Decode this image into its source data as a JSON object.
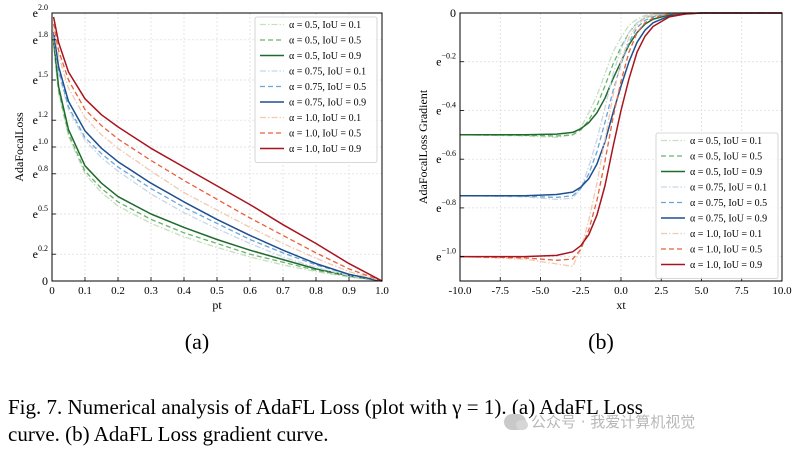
{
  "chart_data": [
    {
      "type": "line",
      "panel_label": "(a)",
      "xlabel": "pt",
      "ylabel": "AdaFocalLoss",
      "xlim": [
        0,
        1
      ],
      "ylim": [
        0,
        2.0
      ],
      "x_ticks": [
        0,
        0.1,
        0.2,
        0.3,
        0.4,
        0.5,
        0.6,
        0.7,
        0.8,
        0.9,
        1.0
      ],
      "x_tick_labels": [
        "0",
        "0.1",
        "0.2",
        "0.3",
        "0.4",
        "0.5",
        "0.6",
        "0.7",
        "0.8",
        "0.9",
        "1.0"
      ],
      "y_ticks": [
        0,
        0.2,
        0.5,
        0.8,
        1.0,
        1.2,
        1.5,
        1.8,
        2.0
      ],
      "y_tick_labels": [
        {
          "base": "0",
          "exp": ""
        },
        {
          "base": "e",
          "exp": "0.2"
        },
        {
          "base": "e",
          "exp": "0.5"
        },
        {
          "base": "e",
          "exp": "0.8"
        },
        {
          "base": "e",
          "exp": "1.0"
        },
        {
          "base": "e",
          "exp": "1.2"
        },
        {
          "base": "e",
          "exp": "1.5"
        },
        {
          "base": "e",
          "exp": "1.8"
        },
        {
          "base": "e",
          "exp": "2.0"
        }
      ],
      "grid": true,
      "legend_position": "top-right",
      "series": [
        {
          "name": "α = 0.5, IoU = 0.1",
          "color": "#c7dec0",
          "dash": "dashdot",
          "x": [
            0.005,
            0.02,
            0.05,
            0.1,
            0.15,
            0.2,
            0.3,
            0.4,
            0.5,
            0.6,
            0.7,
            0.8,
            0.9,
            1.0
          ],
          "y": [
            1.75,
            1.4,
            1.08,
            0.8,
            0.66,
            0.56,
            0.43,
            0.33,
            0.25,
            0.18,
            0.12,
            0.07,
            0.03,
            0.0
          ]
        },
        {
          "name": "α = 0.5, IoU = 0.5",
          "color": "#6ab46e",
          "dash": "dashed",
          "x": [
            0.005,
            0.02,
            0.05,
            0.1,
            0.15,
            0.2,
            0.3,
            0.4,
            0.5,
            0.6,
            0.7,
            0.8,
            0.9,
            1.0
          ],
          "y": [
            1.78,
            1.42,
            1.1,
            0.82,
            0.69,
            0.59,
            0.46,
            0.36,
            0.28,
            0.2,
            0.14,
            0.08,
            0.035,
            0.0
          ]
        },
        {
          "name": "α = 0.5, IoU = 0.9",
          "color": "#1f6b2e",
          "dash": "solid",
          "x": [
            0.005,
            0.02,
            0.05,
            0.1,
            0.15,
            0.2,
            0.3,
            0.4,
            0.5,
            0.6,
            0.7,
            0.8,
            0.9,
            1.0
          ],
          "y": [
            1.8,
            1.45,
            1.13,
            0.86,
            0.73,
            0.63,
            0.5,
            0.4,
            0.31,
            0.23,
            0.16,
            0.09,
            0.04,
            0.0
          ]
        },
        {
          "name": "α = 0.75, IoU = 0.1",
          "color": "#c8d6e6",
          "dash": "dashdot",
          "x": [
            0.005,
            0.02,
            0.05,
            0.1,
            0.15,
            0.2,
            0.3,
            0.4,
            0.5,
            0.6,
            0.7,
            0.8,
            0.9,
            1.0
          ],
          "y": [
            1.82,
            1.55,
            1.28,
            1.05,
            0.92,
            0.82,
            0.65,
            0.51,
            0.39,
            0.28,
            0.18,
            0.1,
            0.04,
            0.0
          ]
        },
        {
          "name": "α = 0.75, IoU = 0.5",
          "color": "#6aa6d6",
          "dash": "dashed",
          "x": [
            0.005,
            0.02,
            0.05,
            0.1,
            0.15,
            0.2,
            0.3,
            0.4,
            0.5,
            0.6,
            0.7,
            0.8,
            0.9,
            1.0
          ],
          "y": [
            1.84,
            1.57,
            1.3,
            1.07,
            0.95,
            0.85,
            0.69,
            0.55,
            0.43,
            0.31,
            0.21,
            0.12,
            0.05,
            0.0
          ]
        },
        {
          "name": "α = 0.75, IoU = 0.9",
          "color": "#1f4f8f",
          "dash": "solid",
          "x": [
            0.005,
            0.02,
            0.05,
            0.1,
            0.15,
            0.2,
            0.3,
            0.4,
            0.5,
            0.6,
            0.7,
            0.8,
            0.9,
            1.0
          ],
          "y": [
            1.86,
            1.6,
            1.34,
            1.12,
            0.99,
            0.89,
            0.73,
            0.59,
            0.46,
            0.34,
            0.23,
            0.13,
            0.05,
            0.0
          ]
        },
        {
          "name": "α = 1.0, IoU = 0.1",
          "color": "#f0c9b0",
          "dash": "dashdot",
          "x": [
            0.005,
            0.02,
            0.05,
            0.1,
            0.15,
            0.2,
            0.3,
            0.4,
            0.5,
            0.6,
            0.7,
            0.8,
            0.9,
            1.0
          ],
          "y": [
            1.88,
            1.68,
            1.44,
            1.22,
            1.09,
            0.99,
            0.82,
            0.66,
            0.53,
            0.4,
            0.28,
            0.17,
            0.07,
            0.0
          ]
        },
        {
          "name": "α = 1.0, IoU = 0.5",
          "color": "#e8603c",
          "dash": "dashed",
          "x": [
            0.005,
            0.02,
            0.05,
            0.1,
            0.15,
            0.2,
            0.3,
            0.4,
            0.5,
            0.6,
            0.7,
            0.8,
            0.9,
            1.0
          ],
          "y": [
            1.92,
            1.72,
            1.5,
            1.28,
            1.16,
            1.06,
            0.9,
            0.75,
            0.61,
            0.47,
            0.34,
            0.21,
            0.09,
            0.0
          ]
        },
        {
          "name": "α = 1.0, IoU = 0.9",
          "color": "#a8141e",
          "dash": "solid",
          "x": [
            0.005,
            0.02,
            0.05,
            0.1,
            0.15,
            0.2,
            0.3,
            0.4,
            0.5,
            0.6,
            0.7,
            0.8,
            0.9,
            1.0
          ],
          "y": [
            1.97,
            1.78,
            1.56,
            1.36,
            1.24,
            1.15,
            0.99,
            0.85,
            0.71,
            0.57,
            0.42,
            0.28,
            0.13,
            0.0
          ]
        }
      ]
    },
    {
      "type": "line",
      "panel_label": "(b)",
      "xlabel": "xt",
      "ylabel": "AdaFocalLoss Gradient",
      "xlim": [
        -10,
        10
      ],
      "ylim": [
        -1.1,
        0
      ],
      "x_ticks": [
        -10,
        -7.5,
        -5,
        -2.5,
        0,
        2.5,
        5,
        7.5,
        10
      ],
      "x_tick_labels": [
        "-10.0",
        "-7.5",
        "-5.0",
        "-2.5",
        "0.0",
        "2.5",
        "5.0",
        "7.5",
        "10.0"
      ],
      "y_ticks": [
        0,
        -0.2,
        -0.4,
        -0.6,
        -0.8,
        -1.0
      ],
      "y_tick_labels": [
        {
          "base": "0",
          "exp": ""
        },
        {
          "base": "e",
          "exp": "−0.2"
        },
        {
          "base": "e",
          "exp": "−0.4"
        },
        {
          "base": "e",
          "exp": "−0.6"
        },
        {
          "base": "e",
          "exp": "−0.8"
        },
        {
          "base": "e",
          "exp": "−1.0"
        }
      ],
      "grid": true,
      "legend_position": "bottom-right",
      "series": [
        {
          "name": "α = 0.5, IoU = 0.1",
          "color": "#c7dec0",
          "dash": "dashdot",
          "x": [
            -10,
            -6,
            -4,
            -3,
            -2.5,
            -2,
            -1.5,
            -1,
            -0.5,
            0,
            0.5,
            1,
            1.5,
            2,
            3,
            4,
            5,
            10
          ],
          "y": [
            -0.5,
            -0.505,
            -0.51,
            -0.5,
            -0.47,
            -0.41,
            -0.34,
            -0.25,
            -0.16,
            -0.1,
            -0.05,
            -0.025,
            -0.01,
            -0.004,
            0,
            0,
            0,
            0
          ]
        },
        {
          "name": "α = 0.5, IoU = 0.5",
          "color": "#6ab46e",
          "dash": "dashed",
          "x": [
            -10,
            -6,
            -4,
            -3,
            -2.5,
            -2,
            -1.5,
            -1,
            -0.5,
            0,
            0.5,
            1,
            1.5,
            2,
            3,
            4,
            5,
            10
          ],
          "y": [
            -0.5,
            -0.502,
            -0.505,
            -0.5,
            -0.48,
            -0.44,
            -0.38,
            -0.3,
            -0.21,
            -0.14,
            -0.08,
            -0.04,
            -0.02,
            -0.01,
            -0.002,
            0,
            0,
            0
          ]
        },
        {
          "name": "α = 0.5, IoU = 0.9",
          "color": "#1f6b2e",
          "dash": "solid",
          "x": [
            -10,
            -6,
            -4,
            -3,
            -2.5,
            -2,
            -1.5,
            -1,
            -0.5,
            0,
            0.5,
            1,
            1.5,
            2,
            3,
            4,
            5,
            10
          ],
          "y": [
            -0.5,
            -0.5,
            -0.497,
            -0.49,
            -0.475,
            -0.45,
            -0.41,
            -0.35,
            -0.27,
            -0.2,
            -0.13,
            -0.08,
            -0.045,
            -0.025,
            -0.008,
            -0.002,
            0,
            0
          ]
        },
        {
          "name": "α = 0.75, IoU = 0.1",
          "color": "#c8d6e6",
          "dash": "dashdot",
          "x": [
            -10,
            -6,
            -4,
            -3,
            -2.5,
            -2,
            -1.5,
            -1,
            -0.5,
            0,
            0.5,
            1,
            1.5,
            2,
            3,
            4,
            5,
            10
          ],
          "y": [
            -0.75,
            -0.755,
            -0.765,
            -0.76,
            -0.72,
            -0.63,
            -0.52,
            -0.39,
            -0.25,
            -0.15,
            -0.08,
            -0.04,
            -0.015,
            -0.006,
            0,
            0,
            0,
            0
          ]
        },
        {
          "name": "α = 0.75, IoU = 0.5",
          "color": "#6aa6d6",
          "dash": "dashed",
          "x": [
            -10,
            -6,
            -4,
            -3,
            -2.5,
            -2,
            -1.5,
            -1,
            -0.5,
            0,
            0.5,
            1,
            1.5,
            2,
            3,
            4,
            5,
            10
          ],
          "y": [
            -0.75,
            -0.752,
            -0.757,
            -0.75,
            -0.72,
            -0.66,
            -0.57,
            -0.45,
            -0.32,
            -0.21,
            -0.12,
            -0.06,
            -0.03,
            -0.015,
            -0.003,
            0,
            0,
            0
          ]
        },
        {
          "name": "α = 0.75, IoU = 0.9",
          "color": "#1f4f8f",
          "dash": "solid",
          "x": [
            -10,
            -6,
            -4,
            -3,
            -2.5,
            -2,
            -1.5,
            -1,
            -0.5,
            0,
            0.5,
            1,
            1.5,
            2,
            3,
            4,
            5,
            10
          ],
          "y": [
            -0.75,
            -0.75,
            -0.745,
            -0.735,
            -0.715,
            -0.68,
            -0.62,
            -0.53,
            -0.41,
            -0.3,
            -0.2,
            -0.12,
            -0.07,
            -0.04,
            -0.012,
            -0.003,
            0,
            0
          ]
        },
        {
          "name": "α = 1.0, IoU = 0.1",
          "color": "#f0c9b0",
          "dash": "dashdot",
          "x": [
            -10,
            -6,
            -4,
            -3,
            -2.5,
            -2,
            -1.5,
            -1,
            -0.5,
            0,
            0.5,
            1,
            1.5,
            2,
            3,
            4,
            5,
            10
          ],
          "y": [
            -1.0,
            -1.01,
            -1.03,
            -1.04,
            -0.97,
            -0.85,
            -0.7,
            -0.52,
            -0.34,
            -0.2,
            -0.1,
            -0.05,
            -0.02,
            -0.008,
            0,
            0,
            0,
            0
          ]
        },
        {
          "name": "α = 1.0, IoU = 0.5",
          "color": "#e8603c",
          "dash": "dashed",
          "x": [
            -10,
            -6,
            -4,
            -3,
            -2.5,
            -2,
            -1.5,
            -1,
            -0.5,
            0,
            0.5,
            1,
            1.5,
            2,
            3,
            4,
            5,
            10
          ],
          "y": [
            -1.0,
            -1.005,
            -1.015,
            -1.01,
            -0.97,
            -0.89,
            -0.77,
            -0.61,
            -0.43,
            -0.28,
            -0.16,
            -0.08,
            -0.04,
            -0.02,
            -0.004,
            0,
            0,
            0
          ]
        },
        {
          "name": "α = 1.0, IoU = 0.9",
          "color": "#a8141e",
          "dash": "solid",
          "x": [
            -10,
            -6,
            -4,
            -3,
            -2.5,
            -2,
            -1.5,
            -1,
            -0.5,
            0,
            0.5,
            1,
            1.5,
            2,
            3,
            4,
            5,
            10
          ],
          "y": [
            -1.0,
            -1.0,
            -0.995,
            -0.98,
            -0.955,
            -0.91,
            -0.83,
            -0.71,
            -0.55,
            -0.4,
            -0.27,
            -0.16,
            -0.095,
            -0.055,
            -0.016,
            -0.004,
            0,
            0
          ]
        }
      ]
    }
  ],
  "caption": {
    "line1": "Fig. 7.  Numerical analysis of AdaFL Loss (plot with γ = 1). (a) AdaFL Loss",
    "line2": "curve. (b) AdaFL Loss gradient curve."
  },
  "watermark": {
    "text": "公众号 · 我爱计算机视觉",
    "icon": "wechat-icon"
  }
}
